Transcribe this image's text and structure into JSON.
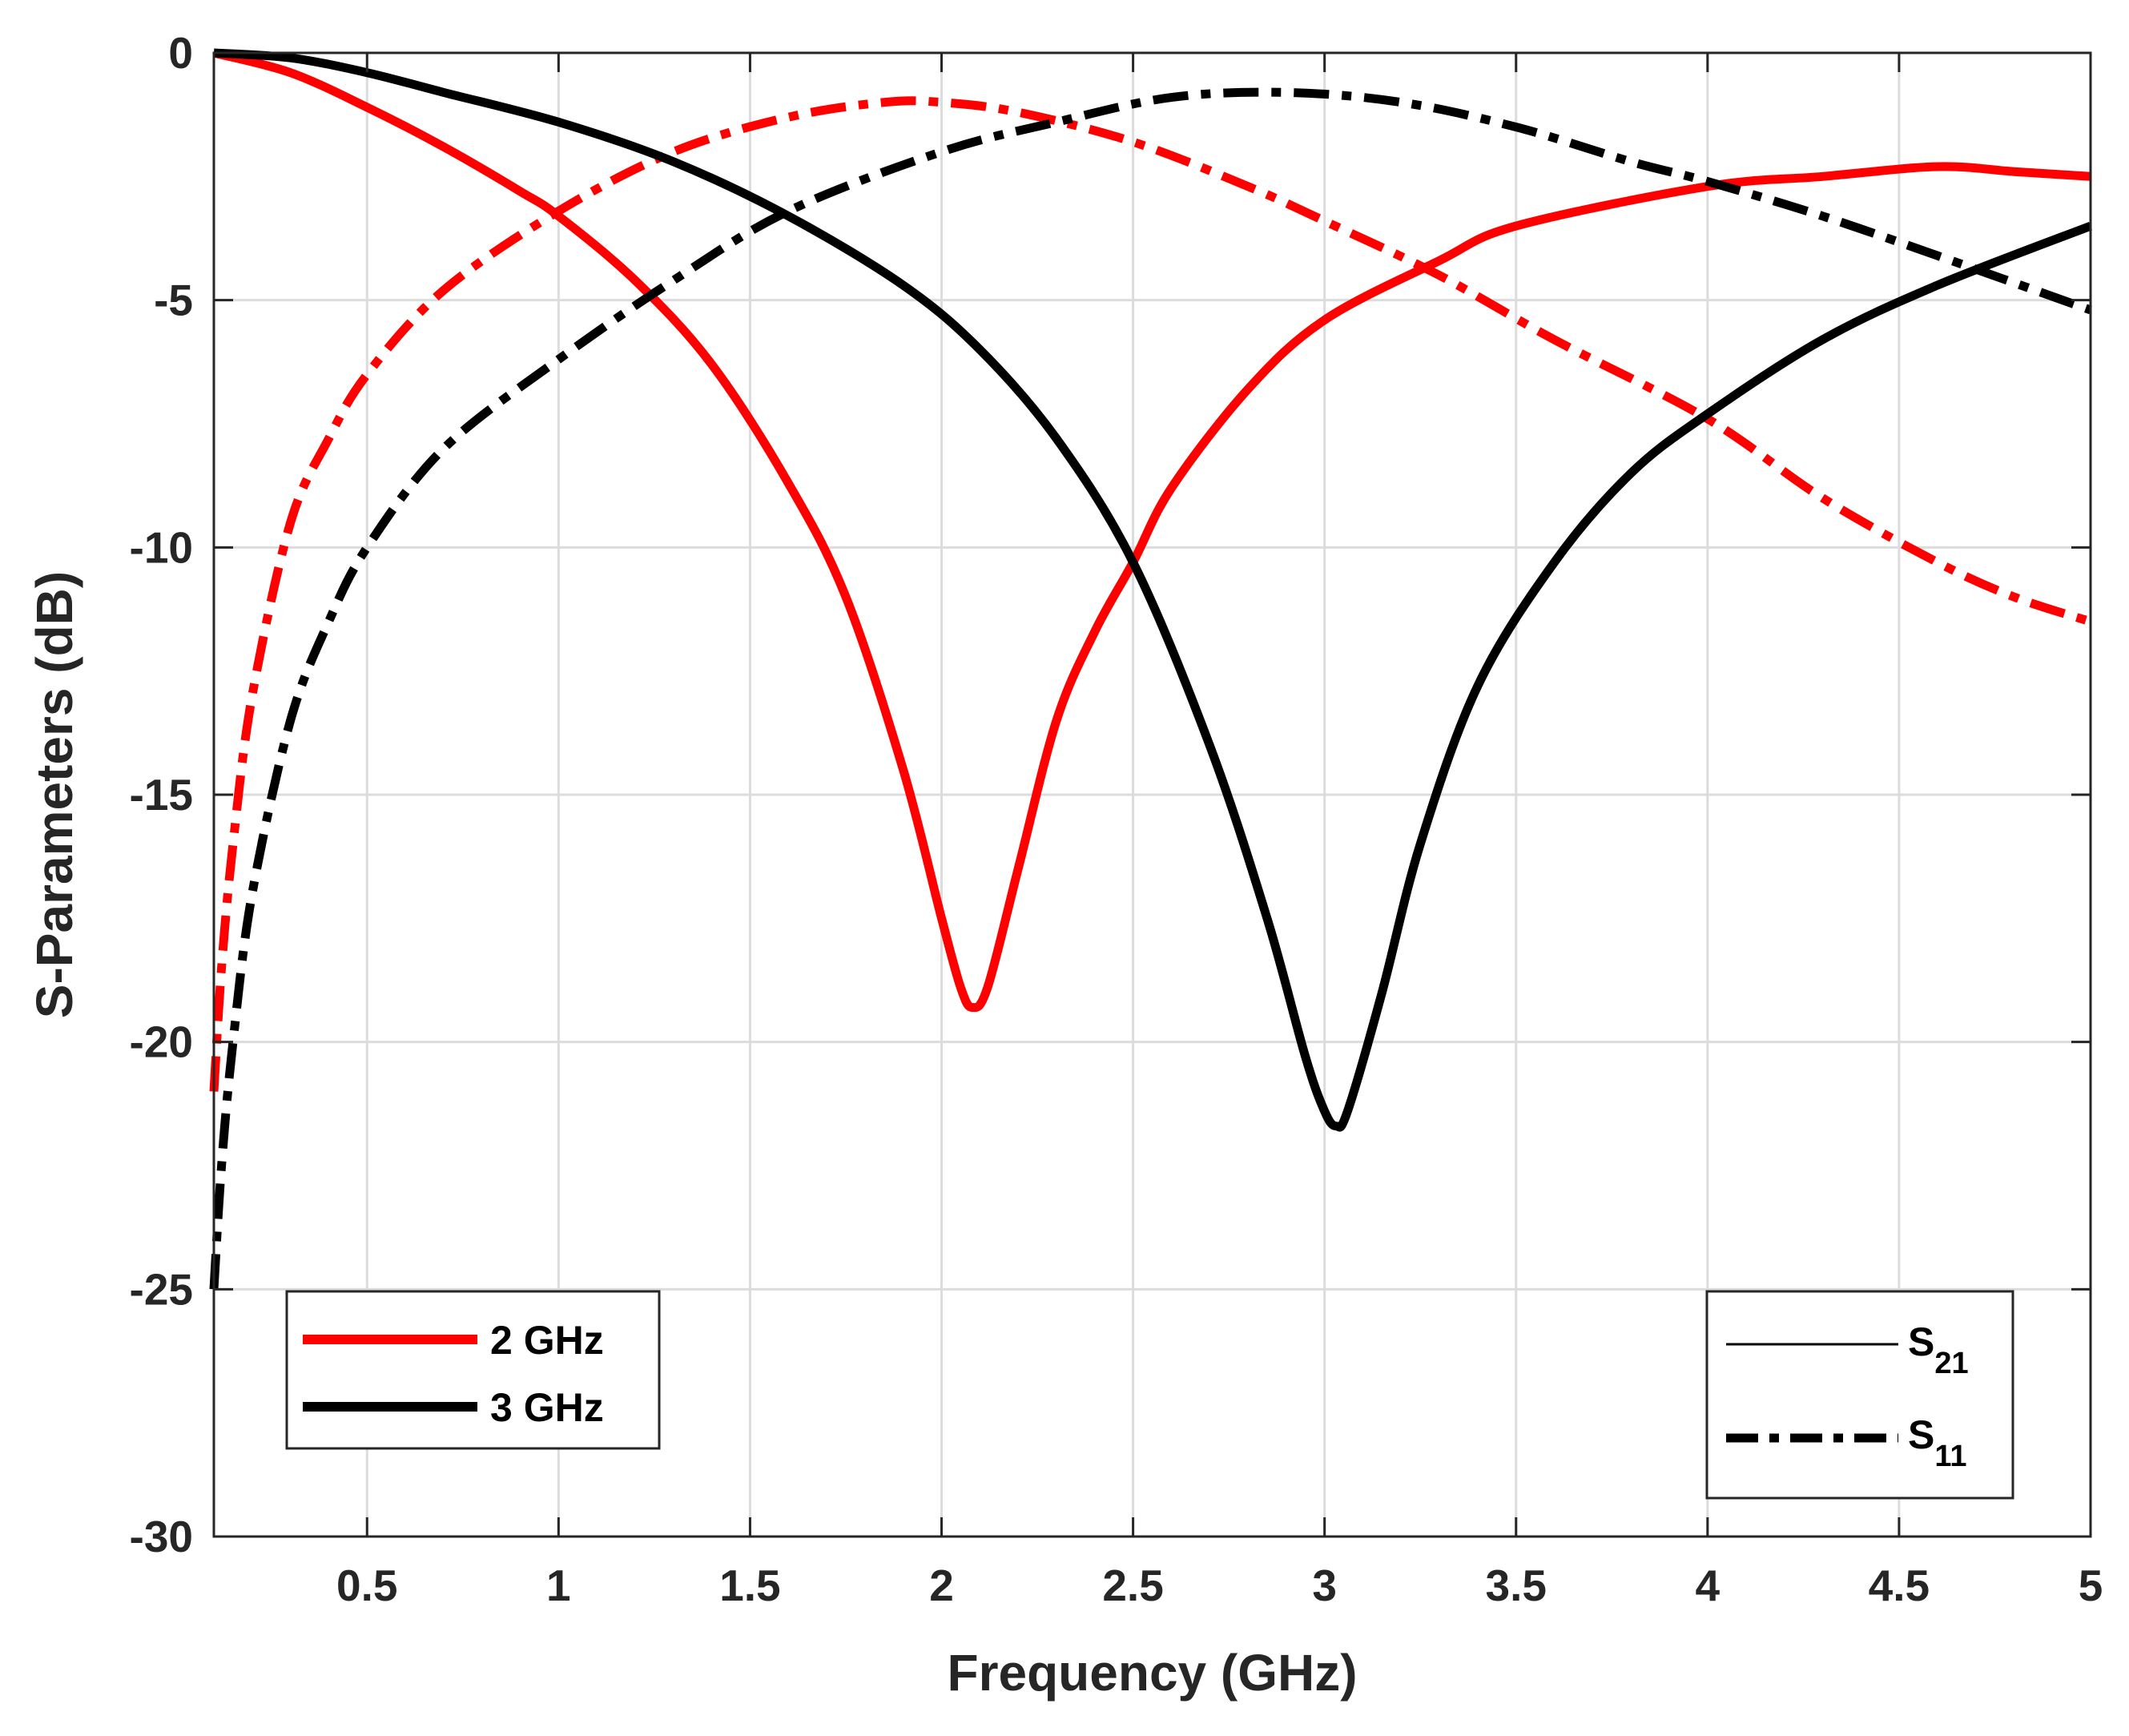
{
  "chart_data": {
    "type": "line",
    "title": "",
    "xlabel": "Frequency (GHz)",
    "ylabel": "S-Parameters (dB)",
    "xlim": [
      0.1,
      5
    ],
    "ylim": [
      -30,
      0
    ],
    "grid": true,
    "xticks": [
      0.5,
      1,
      1.5,
      2,
      2.5,
      3,
      3.5,
      4,
      4.5,
      5
    ],
    "xtick_labels": [
      "0.5",
      "1",
      "1.5",
      "2",
      "2.5",
      "3",
      "3.5",
      "4",
      "4.5",
      "5"
    ],
    "yticks": [
      0,
      -5,
      -10,
      -15,
      -20,
      -25,
      -30
    ],
    "ytick_labels": [
      "0",
      "-5",
      "-10",
      "-15",
      "-20",
      "-25",
      "-30"
    ],
    "colors": {
      "red": "#ff0000",
      "black": "#000000",
      "grid": "#dcdcdc",
      "axis": "#262626"
    },
    "series": [
      {
        "name": "2 GHz S21",
        "design": "2 GHz",
        "param": "S21",
        "color": "#ff0000",
        "style": "solid",
        "x": [
          0.1,
          0.3,
          0.5,
          0.7,
          0.9,
          1.0,
          1.2,
          1.4,
          1.6,
          1.75,
          1.9,
          2.0,
          2.05,
          2.08,
          2.12,
          2.2,
          2.3,
          2.4,
          2.5,
          2.6,
          2.8,
          3.0,
          3.3,
          3.5,
          4.0,
          4.3,
          4.6,
          4.8,
          5.0
        ],
        "y": [
          0,
          -0.4,
          -1.1,
          -1.9,
          -2.8,
          -3.3,
          -4.6,
          -6.3,
          -8.7,
          -11.0,
          -14.5,
          -17.5,
          -18.9,
          -19.3,
          -18.9,
          -16.5,
          -13.5,
          -11.7,
          -10.3,
          -8.8,
          -6.8,
          -5.4,
          -4.2,
          -3.5,
          -2.7,
          -2.5,
          -2.3,
          -2.4,
          -2.5
        ]
      },
      {
        "name": "2 GHz S11",
        "design": "2 GHz",
        "param": "S11",
        "color": "#ff0000",
        "style": "dashdot",
        "x": [
          0.1,
          0.12,
          0.15,
          0.2,
          0.3,
          0.4,
          0.5,
          0.7,
          1.0,
          1.3,
          1.6,
          1.85,
          2.0,
          2.2,
          2.5,
          2.8,
          3.0,
          3.3,
          3.6,
          4.0,
          4.3,
          4.6,
          4.8,
          5.0
        ],
        "y": [
          -21.0,
          -18.5,
          -16.0,
          -13.0,
          -9.5,
          -7.8,
          -6.5,
          -4.8,
          -3.2,
          -2.0,
          -1.3,
          -1.0,
          -1.0,
          -1.2,
          -1.8,
          -2.7,
          -3.4,
          -4.5,
          -5.8,
          -7.4,
          -9.0,
          -10.3,
          -11.0,
          -11.5
        ]
      },
      {
        "name": "3 GHz S21",
        "design": "3 GHz",
        "param": "S21",
        "color": "#000000",
        "style": "solid",
        "x": [
          0.1,
          0.3,
          0.5,
          0.7,
          1.0,
          1.3,
          1.6,
          1.9,
          2.1,
          2.3,
          2.5,
          2.7,
          2.85,
          2.95,
          3.0,
          3.03,
          3.06,
          3.15,
          3.25,
          3.4,
          3.6,
          3.8,
          4.0,
          4.3,
          4.6,
          5.0
        ],
        "y": [
          0,
          -0.1,
          -0.4,
          -0.8,
          -1.4,
          -2.2,
          -3.3,
          -4.7,
          -6.0,
          -7.8,
          -10.3,
          -14.0,
          -17.5,
          -20.3,
          -21.4,
          -21.7,
          -21.4,
          -19.0,
          -16.0,
          -12.8,
          -10.3,
          -8.5,
          -7.3,
          -5.8,
          -4.7,
          -3.5
        ]
      },
      {
        "name": "3 GHz S11",
        "design": "3 GHz",
        "param": "S11",
        "color": "#000000",
        "style": "dashdot",
        "x": [
          0.1,
          0.12,
          0.15,
          0.2,
          0.3,
          0.4,
          0.5,
          0.7,
          1.0,
          1.3,
          1.6,
          2.0,
          2.3,
          2.6,
          2.9,
          3.2,
          3.5,
          3.8,
          4.0,
          4.3,
          4.6,
          5.0
        ],
        "y": [
          -25.0,
          -22.5,
          -20.0,
          -17.0,
          -13.5,
          -11.5,
          -10.0,
          -8.0,
          -6.2,
          -4.6,
          -3.2,
          -2.0,
          -1.4,
          -0.9,
          -0.8,
          -1.0,
          -1.5,
          -2.2,
          -2.6,
          -3.3,
          -4.1,
          -5.2
        ]
      }
    ],
    "legends": [
      {
        "position": "bottom-left",
        "entries": [
          {
            "label": "2 GHz",
            "color": "#ff0000"
          },
          {
            "label": "3 GHz",
            "color": "#000000"
          }
        ]
      },
      {
        "position": "bottom-right",
        "entries": [
          {
            "label": "S",
            "sub": "21",
            "style": "solid"
          },
          {
            "label": "S",
            "sub": "11",
            "style": "dashdot"
          }
        ]
      }
    ]
  }
}
